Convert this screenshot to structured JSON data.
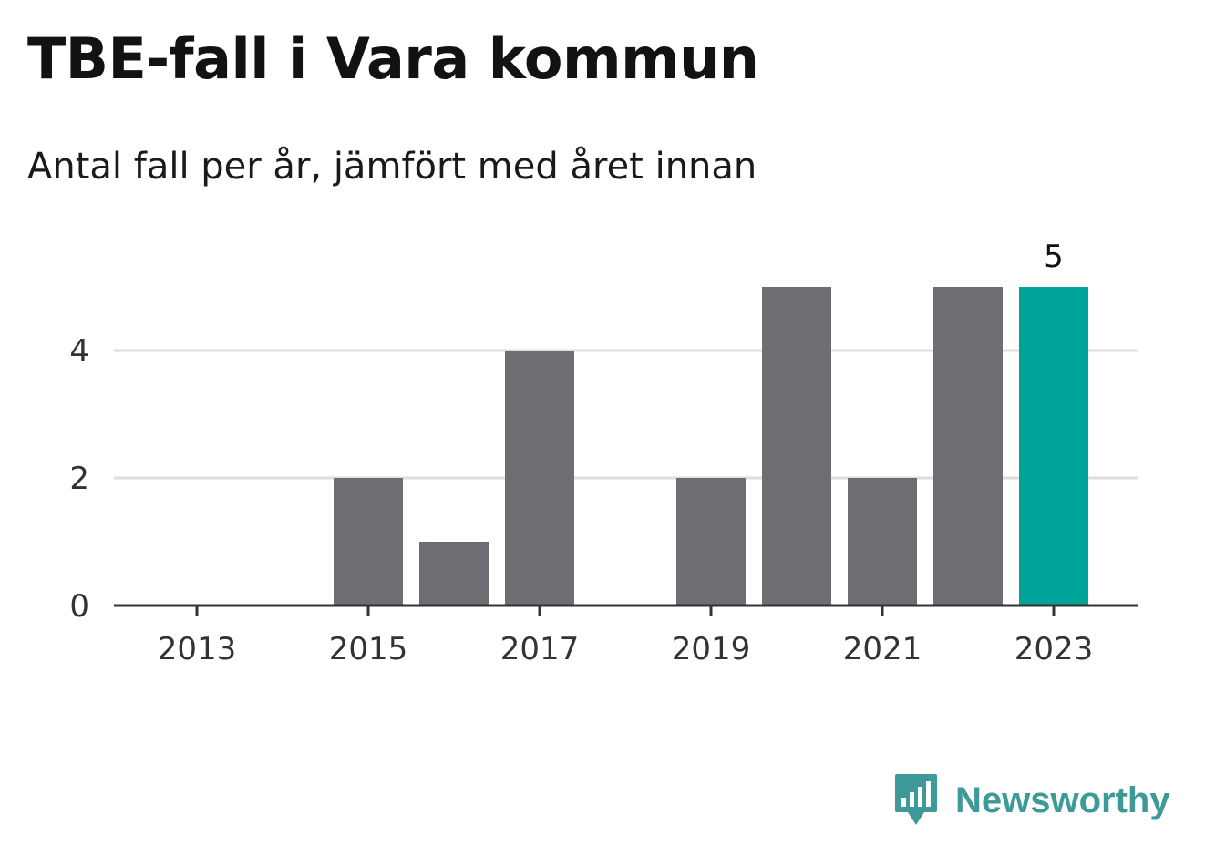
{
  "title": "TBE-fall i Vara kommun",
  "subtitle": "Antal fall per år, jämfört med året innan",
  "brand": {
    "name": "Newsworthy",
    "color": "#3d9a98",
    "icon": "newsworthy-chart-bubble-icon"
  },
  "chart_data": {
    "type": "bar",
    "title": "TBE-fall i Vara kommun",
    "subtitle": "Antal fall per år, jämfört med året innan",
    "categories": [
      "2013",
      "2014",
      "2015",
      "2016",
      "2017",
      "2018",
      "2019",
      "2020",
      "2021",
      "2022",
      "2023"
    ],
    "values": [
      0,
      0,
      2,
      1,
      4,
      0,
      2,
      5,
      2,
      5,
      5
    ],
    "x_tick_labels": [
      "2013",
      "2015",
      "2017",
      "2019",
      "2021",
      "2023"
    ],
    "y_ticks": [
      0,
      2,
      4
    ],
    "ylim": [
      0,
      5.5
    ],
    "grid": true,
    "bar_color": "#6e6d73",
    "highlight_color": "#00a398",
    "highlight_category": "2023",
    "data_labels": [
      {
        "category": "2023",
        "text": "5"
      }
    ],
    "xlabel": "",
    "ylabel": ""
  }
}
